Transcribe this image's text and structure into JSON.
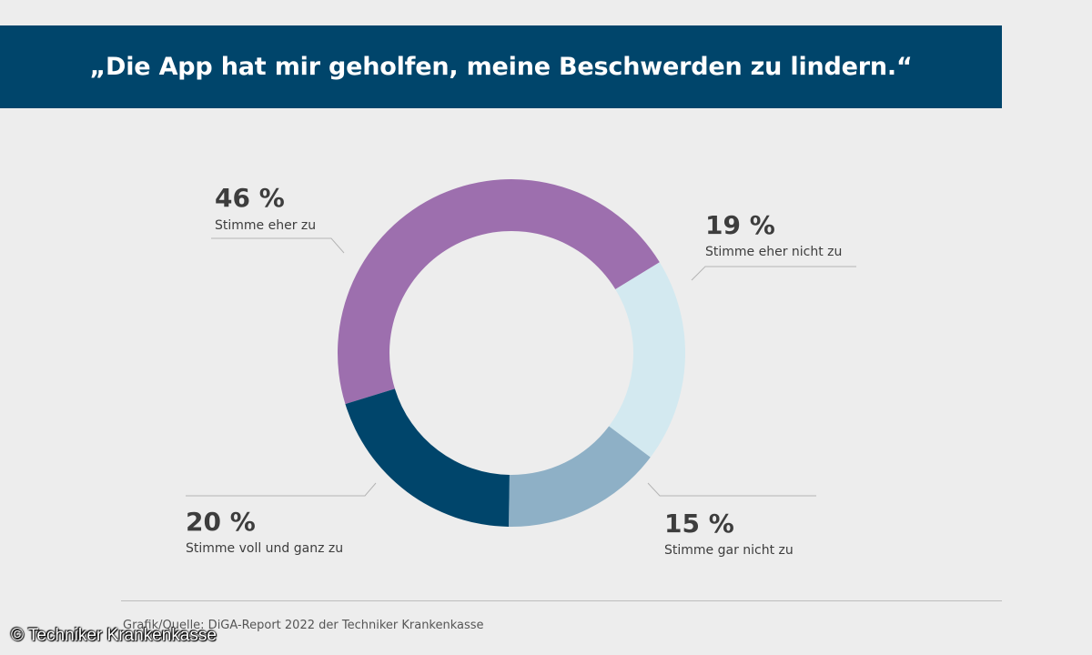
{
  "title": "„Die App hat mir geholfen, meine Beschwerden zu lindern.“",
  "chart_data": {
    "type": "pie",
    "style": "donut",
    "title": "„Die App hat mir geholfen, meine Beschwerden zu lindern.“",
    "slices": [
      {
        "label": "Stimme eher zu",
        "value": 46,
        "value_label": "46 %",
        "color": "#9d6fae"
      },
      {
        "label": "Stimme eher nicht zu",
        "value": 19,
        "value_label": "19 %",
        "color": "#d3e9f0"
      },
      {
        "label": "Stimme gar nicht zu",
        "value": 15,
        "value_label": "15 %",
        "color": "#8eb0c6"
      },
      {
        "label": "Stimme voll und ganz zu",
        "value": 20,
        "value_label": "20 %",
        "color": "#00456b"
      }
    ]
  },
  "source": "Grafik/Quelle: DiGA-Report 2022 der Techniker Krankenkasse",
  "copyright": "© Techniker Krankenkasse",
  "colors": {
    "header_bg": "#00456b",
    "page_bg": "#ededed"
  }
}
